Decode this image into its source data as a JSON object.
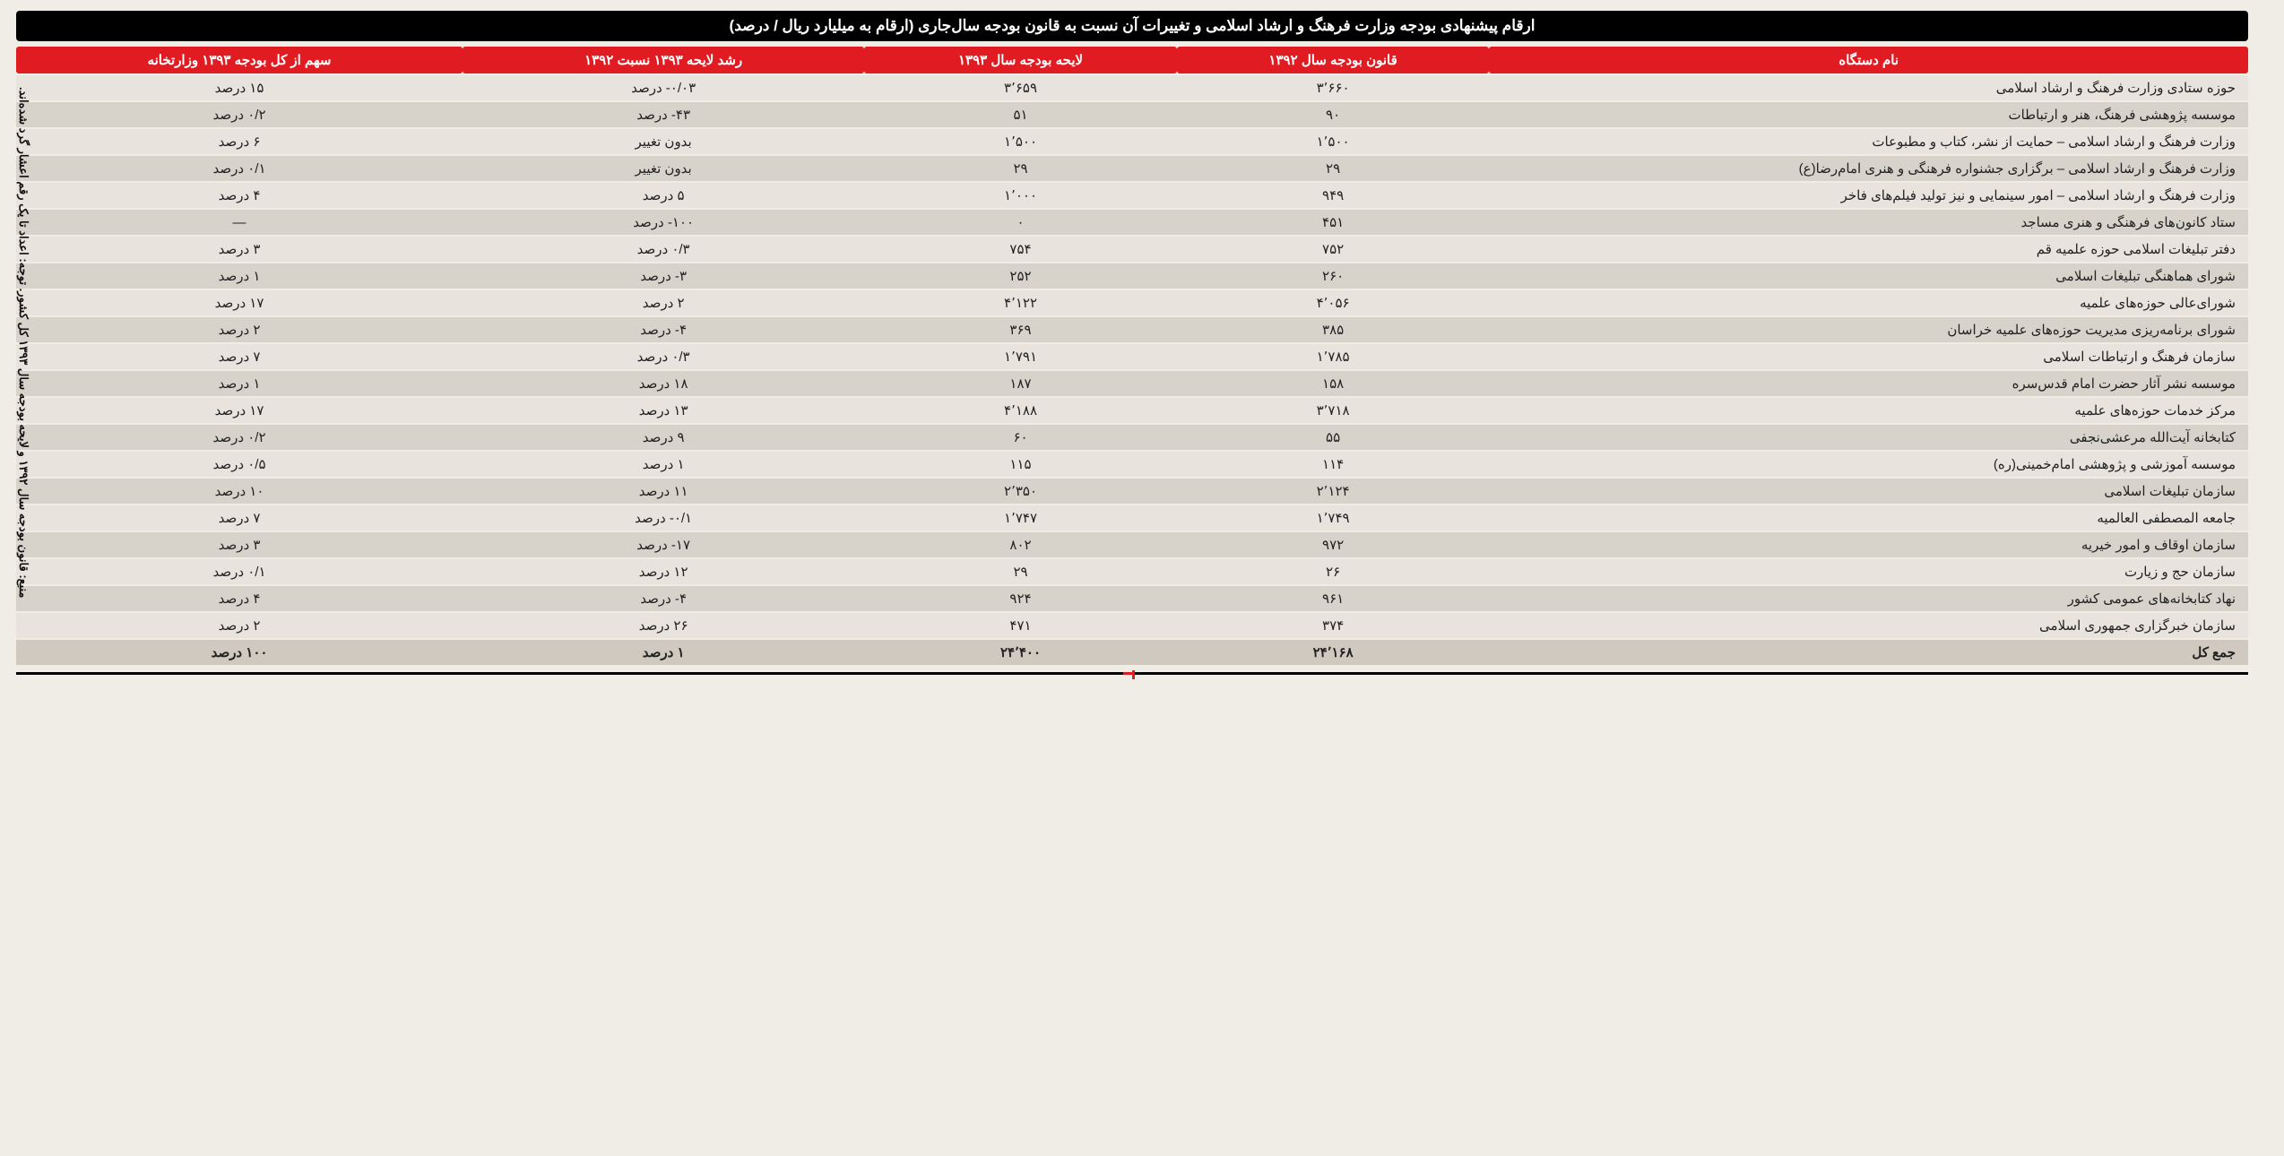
{
  "title": "ارقام پیشنهادی بودجه وزارت فرهنگ و ارشاد اسلامی و تغییرات آن نسبت به قانون بودجه سال‌جاری (ارقام به میلیارد ریال / درصد)",
  "source_note": "منبع: قانون بودجه سال ۱۳۹۲ و لایحه بودجه سال ۱۳۹۳ کل کشور. توجه: اعداد تا یک رقم اعشار گرد شده‌اند.",
  "columns": {
    "name": "نام دستگاه",
    "b1392": "قانون بودجه سال ۱۳۹۲",
    "b1393": "لایحه بودجه سال ۱۳۹۳",
    "growth": "رشد لایحه ۱۳۹۳ نسبت ۱۳۹۲",
    "share": "سهم از کل بودجه ۱۳۹۳ وزارتخانه"
  },
  "rows": [
    {
      "name": "حوزه ستادی وزارت فرهنگ و ارشاد اسلامی",
      "b1392": "۳٬۶۶۰",
      "b1393": "۳٬۶۵۹",
      "growth": "۰/۰۳- درصد",
      "share": "۱۵ درصد"
    },
    {
      "name": "موسسه پژوهشی فرهنگ، هنر و ارتباطات",
      "b1392": "۹۰",
      "b1393": "۵۱",
      "growth": "۴۳- درصد",
      "share": "۰/۲ درصد"
    },
    {
      "name": "وزارت فرهنگ و ارشاد اسلامی – حمایت از نشر، کتاب و مطبوعات",
      "b1392": "۱٬۵۰۰",
      "b1393": "۱٬۵۰۰",
      "growth": "بدون تغییر",
      "share": "۶ درصد"
    },
    {
      "name": "وزارت فرهنگ و ارشاد اسلامی – برگزاری جشنواره فرهنگی و هنری امام‌رضا(ع)",
      "b1392": "۲۹",
      "b1393": "۲۹",
      "growth": "بدون تغییر",
      "share": "۰/۱ درصد"
    },
    {
      "name": "وزارت فرهنگ و ارشاد اسلامی – امور سینمایی و نیز تولید فیلم‌های فاخر",
      "b1392": "۹۴۹",
      "b1393": "۱٬۰۰۰",
      "growth": "۵ درصد",
      "share": "۴ درصد"
    },
    {
      "name": "ستاد کانون‌های فرهنگی و هنری مساجد",
      "b1392": "۴۵۱",
      "b1393": "۰",
      "growth": "۱۰۰- درصد",
      "share": "—"
    },
    {
      "name": "دفتر تبلیغات اسلامی حوزه علمیه قم",
      "b1392": "۷۵۲",
      "b1393": "۷۵۴",
      "growth": "۰/۳ درصد",
      "share": "۳ درصد"
    },
    {
      "name": "شورای هماهنگی تبلیغات اسلامی",
      "b1392": "۲۶۰",
      "b1393": "۲۵۲",
      "growth": "۳- درصد",
      "share": "۱ درصد"
    },
    {
      "name": "شورای‌عالی حوزه‌های علمیه",
      "b1392": "۴٬۰۵۶",
      "b1393": "۴٬۱۲۲",
      "growth": "۲ درصد",
      "share": "۱۷ درصد"
    },
    {
      "name": "شورای برنامه‌ریزی مدیریت حوزه‌های علمیه خراسان",
      "b1392": "۳۸۵",
      "b1393": "۳۶۹",
      "growth": "۴- درصد",
      "share": "۲ درصد"
    },
    {
      "name": "سازمان فرهنگ و ارتباطات اسلامی",
      "b1392": "۱٬۷۸۵",
      "b1393": "۱٬۷۹۱",
      "growth": "۰/۳ درصد",
      "share": "۷ درصد"
    },
    {
      "name": "موسسه نشر آثار حضرت امام قدس‌سره",
      "b1392": "۱۵۸",
      "b1393": "۱۸۷",
      "growth": "۱۸ درصد",
      "share": "۱ درصد"
    },
    {
      "name": "مرکز خدمات حوزه‌های علمیه",
      "b1392": "۳٬۷۱۸",
      "b1393": "۴٬۱۸۸",
      "growth": "۱۳ درصد",
      "share": "۱۷ درصد"
    },
    {
      "name": "کتابخانه آیت‌الله مرعشی‌نجفی",
      "b1392": "۵۵",
      "b1393": "۶۰",
      "growth": "۹ درصد",
      "share": "۰/۲ درصد"
    },
    {
      "name": "موسسه آموزشی و پژوهشی امام‌خمینی(ره)",
      "b1392": "۱۱۴",
      "b1393": "۱۱۵",
      "growth": "۱ درصد",
      "share": "۰/۵ درصد"
    },
    {
      "name": "سازمان تبلیغات اسلامی",
      "b1392": "۲٬۱۲۴",
      "b1393": "۲٬۳۵۰",
      "growth": "۱۱ درصد",
      "share": "۱۰ درصد"
    },
    {
      "name": "جامعه المصطفی العالمیه",
      "b1392": "۱٬۷۴۹",
      "b1393": "۱٬۷۴۷",
      "growth": "۰/۱- درصد",
      "share": "۷ درصد"
    },
    {
      "name": "سازمان اوقاف و امور خیریه",
      "b1392": "۹۷۲",
      "b1393": "۸۰۲",
      "growth": "۱۷- درصد",
      "share": "۳ درصد"
    },
    {
      "name": "سازمان حج و زیارت",
      "b1392": "۲۶",
      "b1393": "۲۹",
      "growth": "۱۲ درصد",
      "share": "۰/۱ درصد"
    },
    {
      "name": "نهاد کتابخانه‌های عمومی کشور",
      "b1392": "۹۶۱",
      "b1393": "۹۲۴",
      "growth": "۴- درصد",
      "share": "۴ درصد"
    },
    {
      "name": "سازمان خبرگزاری جمهوری اسلامی",
      "b1392": "۳۷۴",
      "b1393": "۴۷۱",
      "growth": "۲۶ درصد",
      "share": "۲ درصد"
    }
  ],
  "total": {
    "name": "جمع کل",
    "b1392": "۲۴٬۱۶۸",
    "b1393": "۲۴٬۴۰۰",
    "growth": "۱ درصد",
    "share": "۱۰۰ درصد"
  },
  "styling": {
    "header_bg": "#e11b22",
    "header_fg": "#ffffff",
    "title_bg": "#000000",
    "title_fg": "#ffffff",
    "row_odd_bg": "#e8e3dc",
    "row_even_bg": "#d7d2ca",
    "total_bg": "#cfc9c0",
    "page_bg": "#f0ece6",
    "font_family": "Tahoma",
    "title_fontsize_pt": 13,
    "cell_fontsize_pt": 11
  }
}
